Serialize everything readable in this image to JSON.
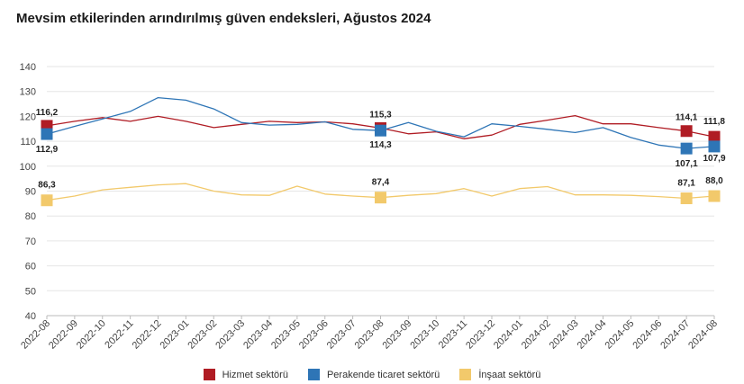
{
  "chart_data": {
    "type": "line",
    "title": "Mevsim etkilerinden arındırılmış güven endeksleri, Ağustos 2024",
    "xlabel": "",
    "ylabel": "",
    "ylim": [
      40,
      140
    ],
    "yticks": [
      "40",
      "50",
      "60",
      "70",
      "80",
      "90",
      "100",
      "110",
      "120",
      "130",
      "140"
    ],
    "categories": [
      "2022-08",
      "2022-09",
      "2022-10",
      "2022-11",
      "2022-12",
      "2023-01",
      "2023-02",
      "2023-03",
      "2023-04",
      "2023-05",
      "2023-06",
      "2023-07",
      "2023-08",
      "2023-09",
      "2023-10",
      "2023-11",
      "2023-12",
      "2024-01",
      "2024-02",
      "2024-03",
      "2024-04",
      "2024-05",
      "2024-06",
      "2024-07",
      "2024-08"
    ],
    "series": [
      {
        "name": "Hizmet sektörü",
        "color": "#b01c24",
        "values": [
          116.2,
          118.0,
          119.5,
          118.0,
          120.0,
          118.0,
          115.5,
          116.8,
          118.0,
          117.5,
          117.8,
          117.0,
          115.3,
          113.0,
          113.8,
          111.0,
          112.5,
          116.8,
          118.5,
          120.3,
          117.0,
          117.0,
          115.5,
          114.1,
          111.8
        ],
        "markers": [
          {
            "index": 0,
            "label": "116,2"
          },
          {
            "index": 12,
            "label": "115,3"
          },
          {
            "index": 23,
            "label": "114,1"
          },
          {
            "index": 24,
            "label": "111,8"
          }
        ]
      },
      {
        "name": "Perakende ticaret sektörü",
        "color": "#2e75b6",
        "values": [
          112.9,
          116.0,
          119.0,
          122.0,
          127.5,
          126.5,
          123.0,
          117.5,
          116.5,
          116.8,
          117.8,
          114.8,
          114.3,
          117.5,
          114.0,
          111.8,
          117.0,
          116.0,
          114.8,
          113.5,
          115.5,
          111.5,
          108.5,
          107.1,
          107.9
        ],
        "markers": [
          {
            "index": 0,
            "label": "112,9"
          },
          {
            "index": 12,
            "label": "114,3"
          },
          {
            "index": 23,
            "label": "107,1"
          },
          {
            "index": 24,
            "label": "107,9"
          }
        ]
      },
      {
        "name": "İnşaat sektörü",
        "color": "#f2c96b",
        "values": [
          86.3,
          88.0,
          90.5,
          91.5,
          92.5,
          93.0,
          90.0,
          88.5,
          88.3,
          92.0,
          88.8,
          88.0,
          87.4,
          88.3,
          89.0,
          91.0,
          88.0,
          91.0,
          91.8,
          88.5,
          88.5,
          88.3,
          87.8,
          87.1,
          88.0
        ],
        "markers": [
          {
            "index": 0,
            "label": "86,3"
          },
          {
            "index": 12,
            "label": "87,4"
          },
          {
            "index": 23,
            "label": "87,1"
          },
          {
            "index": 24,
            "label": "88,0"
          }
        ]
      }
    ],
    "legend": "bottom-center"
  }
}
